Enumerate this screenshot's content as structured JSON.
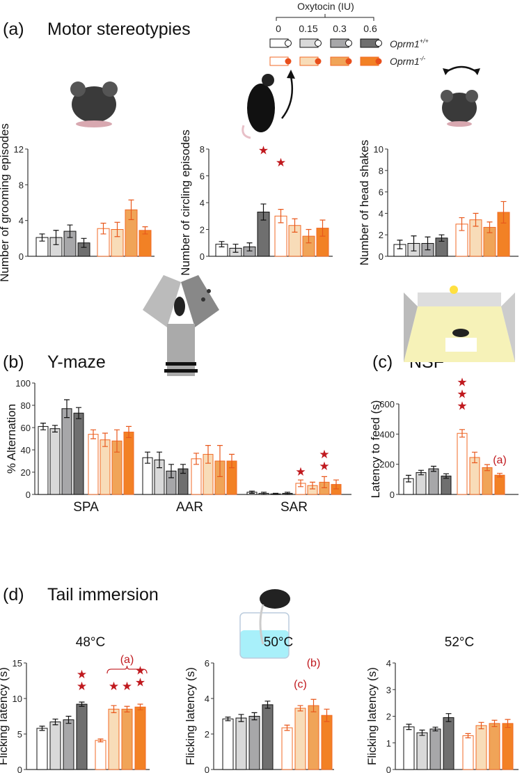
{
  "panels": {
    "a": {
      "letter": "(a)",
      "title": "Motor stereotypies"
    },
    "b": {
      "letter": "(b)",
      "title": "Y-maze"
    },
    "c": {
      "letter": "(c)",
      "title": "NSF"
    },
    "d": {
      "letter": "(d)",
      "title": "Tail immersion"
    }
  },
  "legend": {
    "title": "Oxytocin (IU)",
    "doses": [
      "0",
      "0.15",
      "0.3",
      "0.6"
    ],
    "genotypes": [
      {
        "name": "Oprm1",
        "sup": "+/+"
      },
      {
        "name": "Oprm1",
        "sup": "-/-"
      }
    ]
  },
  "colors": {
    "wt_fills": [
      "#ffffff",
      "#d9d9d9",
      "#a7a7a9",
      "#6f6f6f"
    ],
    "wt_stroke": "#111111",
    "ko_fills": [
      "#ffffff",
      "#f8dcb8",
      "#f0a458",
      "#f28125"
    ],
    "ko_stroke": "#f26a25",
    "star": "#c0191e"
  },
  "chart_data": [
    {
      "id": "grooming",
      "type": "bar",
      "ylabel": "Number of grooming episodes",
      "ylim": [
        0,
        12
      ],
      "yticks": [
        0,
        4,
        8,
        12
      ],
      "groups": [
        {
          "label": "",
          "wt": [
            2.1,
            2.1,
            2.8,
            1.5
          ],
          "wt_sem": [
            0.4,
            0.8,
            0.7,
            0.5
          ],
          "ko": [
            3.1,
            3.0,
            5.2,
            2.9
          ],
          "ko_sem": [
            0.6,
            0.8,
            1.1,
            0.4
          ]
        }
      ],
      "stars": [],
      "annotations": []
    },
    {
      "id": "circling",
      "type": "bar",
      "ylabel": "Number of circling episodes",
      "ylim": [
        0,
        8
      ],
      "yticks": [
        0,
        2,
        4,
        6,
        8
      ],
      "groups": [
        {
          "label": "",
          "wt": [
            0.9,
            0.6,
            0.7,
            3.3
          ],
          "wt_sem": [
            0.2,
            0.3,
            0.3,
            0.6
          ],
          "ko": [
            3.0,
            2.3,
            1.5,
            2.1
          ],
          "ko_sem": [
            0.5,
            0.5,
            0.5,
            0.6
          ]
        }
      ],
      "stars": [
        {
          "group": 0,
          "genotype": "wt",
          "dose": 3,
          "count": 1,
          "at": 7.6
        },
        {
          "group": 0,
          "genotype": "ko",
          "dose": 0,
          "count": 1,
          "at": 6.7
        }
      ],
      "annotations": []
    },
    {
      "id": "headshakes",
      "type": "bar",
      "ylabel": "Number of head shakes",
      "ylim": [
        0,
        10
      ],
      "yticks": [
        0,
        2,
        4,
        6,
        8,
        10
      ],
      "groups": [
        {
          "label": "",
          "wt": [
            1.1,
            1.2,
            1.2,
            1.7
          ],
          "wt_sem": [
            0.4,
            0.7,
            0.6,
            0.3
          ],
          "ko": [
            3.0,
            3.4,
            2.7,
            4.1
          ],
          "ko_sem": [
            0.6,
            0.6,
            0.5,
            1.0
          ]
        }
      ],
      "stars": [],
      "annotations": []
    },
    {
      "id": "ymaze",
      "type": "bar",
      "ylabel": "% Alternation",
      "ylim": [
        0,
        100
      ],
      "yticks": [
        0,
        20,
        40,
        60,
        80,
        100
      ],
      "groups": [
        {
          "label": "SPA",
          "wt": [
            61,
            59,
            77,
            73
          ],
          "wt_sem": [
            3,
            3,
            8,
            5
          ],
          "ko": [
            54,
            49,
            48,
            56
          ],
          "ko_sem": [
            4,
            6,
            10,
            5
          ]
        },
        {
          "label": "AAR",
          "wt": [
            33,
            31,
            21,
            23
          ],
          "wt_sem": [
            5,
            7,
            6,
            4
          ],
          "ko": [
            32,
            36,
            30,
            30
          ],
          "ko_sem": [
            5,
            8,
            14,
            6
          ]
        },
        {
          "label": "SAR",
          "wt": [
            2,
            1,
            0.5,
            1
          ],
          "wt_sem": [
            1,
            1,
            0.5,
            1
          ],
          "ko": [
            10,
            8,
            11,
            9
          ],
          "ko_sem": [
            3,
            3,
            5,
            4
          ]
        }
      ],
      "stars": [
        {
          "group": 2,
          "genotype": "ko",
          "dose": 0,
          "count": 1,
          "at": 17
        },
        {
          "group": 2,
          "genotype": "ko",
          "dose": 2,
          "count": 2,
          "at": 22
        }
      ],
      "annotations": []
    },
    {
      "id": "nsf",
      "type": "bar",
      "ylabel": "Latency to feed (s)",
      "ylim": [
        0,
        600
      ],
      "yticks": [
        0,
        200,
        400,
        600
      ],
      "groups": [
        {
          "label": "",
          "wt": [
            105,
            145,
            170,
            122
          ],
          "wt_sem": [
            22,
            15,
            17,
            15
          ],
          "ko": [
            405,
            245,
            178,
            128
          ],
          "ko_sem": [
            25,
            35,
            20,
            12
          ]
        }
      ],
      "stars": [
        {
          "group": 0,
          "genotype": "ko",
          "dose": 0,
          "count": 3,
          "at": 560
        }
      ],
      "annotations": [
        {
          "text": "(a)",
          "genotype": "ko",
          "dose": 3,
          "at": 205
        }
      ]
    },
    {
      "id": "tail48",
      "type": "bar",
      "title": "48°C",
      "ylabel": "Flicking latency (s)",
      "ylim": [
        0,
        15
      ],
      "yticks": [
        0,
        5,
        10,
        15
      ],
      "groups": [
        {
          "label": "",
          "wt": [
            5.8,
            6.7,
            7.0,
            9.2
          ],
          "wt_sem": [
            0.3,
            0.4,
            0.5,
            0.3
          ],
          "ko": [
            4.1,
            8.5,
            8.5,
            8.8
          ],
          "ko_sem": [
            0.2,
            0.5,
            0.4,
            0.4
          ]
        }
      ],
      "stars": [
        {
          "group": 0,
          "genotype": "wt",
          "dose": 3,
          "count": 2,
          "at": 11.2
        },
        {
          "group": 0,
          "genotype": "ko",
          "dose": 1,
          "count": 1,
          "at": 11.2
        },
        {
          "group": 0,
          "genotype": "ko",
          "dose": 2,
          "count": 1,
          "at": 11.2
        },
        {
          "group": 0,
          "genotype": "ko",
          "dose": 3,
          "count": 2,
          "at": 11.7
        }
      ],
      "annotations": [
        {
          "text": "(a)",
          "bracket": [
            1,
            3
          ],
          "at": 15.3
        }
      ]
    },
    {
      "id": "tail50",
      "type": "bar",
      "title": "50°C",
      "ylabel": "Flicking latency (s)",
      "ylim": [
        0,
        6
      ],
      "yticks": [
        0,
        2,
        4,
        6
      ],
      "groups": [
        {
          "label": "",
          "wt": [
            2.85,
            2.9,
            3.0,
            3.65
          ],
          "wt_sem": [
            0.1,
            0.2,
            0.2,
            0.2
          ],
          "ko": [
            2.35,
            3.45,
            3.6,
            3.05
          ],
          "ko_sem": [
            0.15,
            0.15,
            0.35,
            0.35
          ]
        }
      ],
      "stars": [],
      "annotations": [
        {
          "text": "(c)",
          "genotype": "ko",
          "dose": 1,
          "at": 4.6
        },
        {
          "text": "(b)",
          "genotype": "ko",
          "dose": 2,
          "at": 5.8
        }
      ]
    },
    {
      "id": "tail52",
      "type": "bar",
      "title": "52°C",
      "ylabel": "Flicking latency (s)",
      "ylim": [
        0,
        4
      ],
      "yticks": [
        0,
        1,
        2,
        3,
        4
      ],
      "groups": [
        {
          "label": "",
          "wt": [
            1.6,
            1.38,
            1.52,
            1.95
          ],
          "wt_sem": [
            0.1,
            0.1,
            0.07,
            0.15
          ],
          "ko": [
            1.27,
            1.65,
            1.73,
            1.73
          ],
          "ko_sem": [
            0.08,
            0.12,
            0.12,
            0.15
          ]
        }
      ],
      "stars": [],
      "annotations": []
    }
  ]
}
